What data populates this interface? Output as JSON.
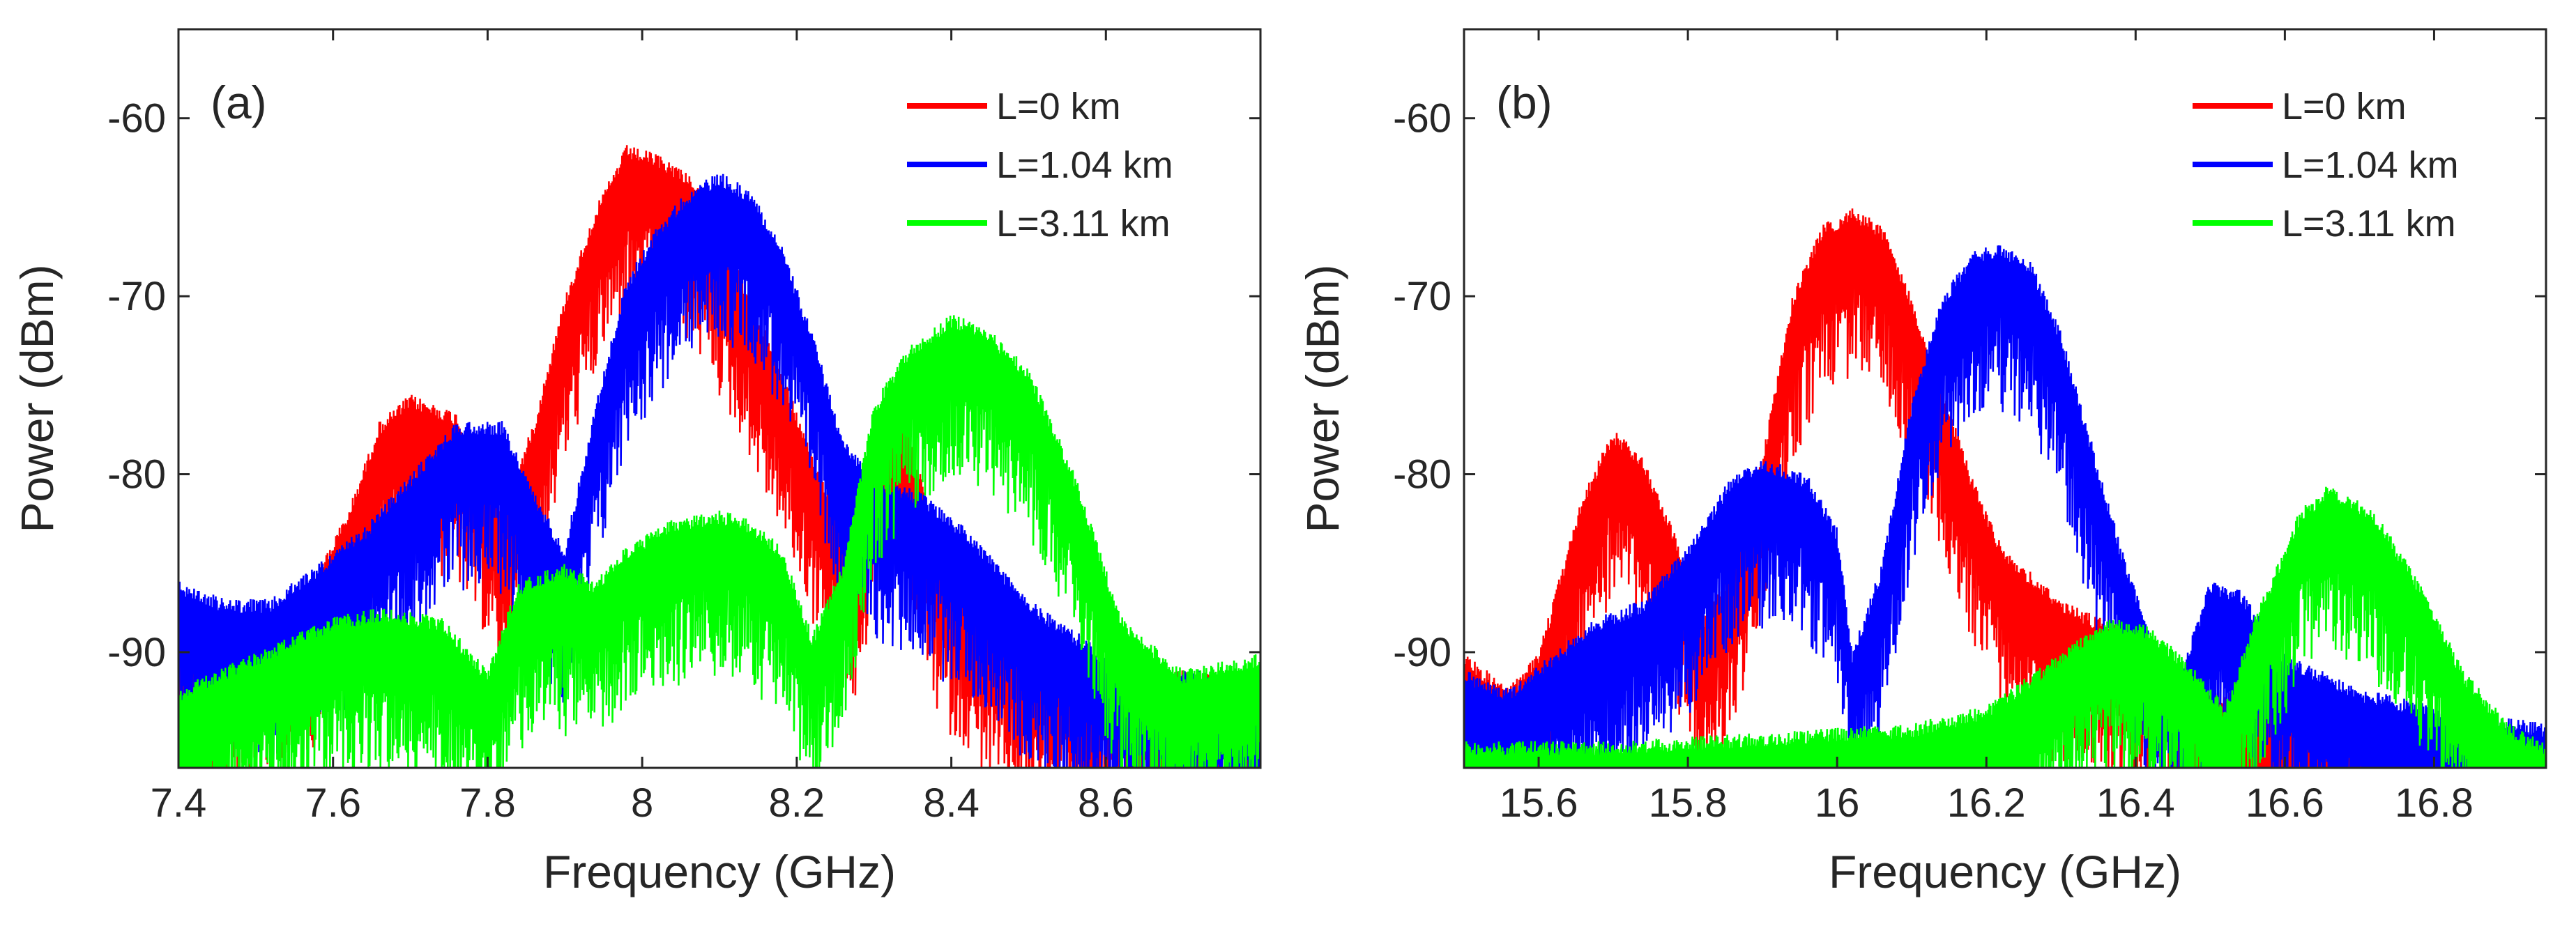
{
  "chart_data": [
    {
      "type": "line",
      "panel_label": "(a)",
      "xlabel": "Frequency (GHz)",
      "ylabel": "Power (dBm)",
      "xlim": [
        7.4,
        8.8
      ],
      "ylim": [
        -96.5,
        -55
      ],
      "xticks": [
        7.4,
        7.6,
        7.8,
        8.0,
        8.2,
        8.4,
        8.6
      ],
      "xtick_labels": [
        "7.4",
        "7.6",
        "7.8",
        "8",
        "8.2",
        "8.4",
        "8.6"
      ],
      "yticks": [
        -90,
        -80,
        -70,
        -60
      ],
      "ytick_labels": [
        "-90",
        "-80",
        "-70",
        "-60"
      ],
      "grid": false,
      "legend_position": "top-right",
      "series": [
        {
          "name": "L=0 km",
          "color": "#ff0000",
          "envelope": [
            [
              7.4,
              -87
            ],
            [
              7.5,
              -88
            ],
            [
              7.56,
              -87
            ],
            [
              7.62,
              -82
            ],
            [
              7.66,
              -77
            ],
            [
              7.7,
              -75.5
            ],
            [
              7.76,
              -76.5
            ],
            [
              7.82,
              -82
            ],
            [
              7.86,
              -77
            ],
            [
              7.9,
              -70
            ],
            [
              7.94,
              -65
            ],
            [
              7.98,
              -61.5
            ],
            [
              8.02,
              -62
            ],
            [
              8.06,
              -63
            ],
            [
              8.1,
              -66
            ],
            [
              8.14,
              -70
            ],
            [
              8.18,
              -74
            ],
            [
              8.22,
              -79
            ],
            [
              8.28,
              -84
            ],
            [
              8.3,
              -77
            ],
            [
              8.34,
              -76
            ],
            [
              8.38,
              -84
            ],
            [
              8.45,
              -88
            ],
            [
              8.55,
              -90
            ],
            [
              8.65,
              -91
            ],
            [
              8.8,
              -91
            ]
          ]
        },
        {
          "name": "L=1.04 km",
          "color": "#0000ff",
          "envelope": [
            [
              7.4,
              -86
            ],
            [
              7.46,
              -87
            ],
            [
              7.52,
              -87
            ],
            [
              7.58,
              -85
            ],
            [
              7.64,
              -83
            ],
            [
              7.7,
              -80
            ],
            [
              7.76,
              -77
            ],
            [
              7.82,
              -77
            ],
            [
              7.86,
              -81
            ],
            [
              7.9,
              -84
            ],
            [
              7.94,
              -76
            ],
            [
              7.98,
              -69
            ],
            [
              8.02,
              -66
            ],
            [
              8.06,
              -64
            ],
            [
              8.1,
              -63
            ],
            [
              8.14,
              -64
            ],
            [
              8.18,
              -67
            ],
            [
              8.22,
              -72
            ],
            [
              8.26,
              -78
            ],
            [
              8.3,
              -80
            ],
            [
              8.36,
              -81
            ],
            [
              8.42,
              -83
            ],
            [
              8.5,
              -87
            ],
            [
              8.6,
              -90
            ],
            [
              8.7,
              -91
            ],
            [
              8.8,
              -91
            ]
          ]
        },
        {
          "name": "L=3.11 km",
          "color": "#00ff00",
          "envelope": [
            [
              7.4,
              -92
            ],
            [
              7.5,
              -90
            ],
            [
              7.6,
              -88
            ],
            [
              7.66,
              -87.5
            ],
            [
              7.74,
              -88
            ],
            [
              7.8,
              -91
            ],
            [
              7.84,
              -86
            ],
            [
              7.9,
              -85
            ],
            [
              7.94,
              -86
            ],
            [
              7.98,
              -84
            ],
            [
              8.04,
              -82.5
            ],
            [
              8.1,
              -82
            ],
            [
              8.14,
              -82.5
            ],
            [
              8.18,
              -84
            ],
            [
              8.22,
              -89
            ],
            [
              8.26,
              -85
            ],
            [
              8.3,
              -76
            ],
            [
              8.34,
              -73
            ],
            [
              8.4,
              -71
            ],
            [
              8.44,
              -71.5
            ],
            [
              8.5,
              -74
            ],
            [
              8.56,
              -80
            ],
            [
              8.62,
              -88
            ],
            [
              8.7,
              -91
            ],
            [
              8.8,
              -90
            ]
          ]
        }
      ]
    },
    {
      "type": "line",
      "panel_label": "(b)",
      "xlabel": "Frequency (GHz)",
      "ylabel": "Power (dBm)",
      "xlim": [
        15.5,
        16.95
      ],
      "ylim": [
        -96.5,
        -55
      ],
      "xticks": [
        15.6,
        15.8,
        16.0,
        16.2,
        16.4,
        16.6,
        16.8
      ],
      "xtick_labels": [
        "15.6",
        "15.8",
        "16",
        "16.2",
        "16.4",
        "16.6",
        "16.8"
      ],
      "yticks": [
        -90,
        -80,
        -70,
        -60
      ],
      "ytick_labels": [
        "-90",
        "-80",
        "-70",
        "-60"
      ],
      "grid": false,
      "legend_position": "top-right",
      "series": [
        {
          "name": "L=0 km",
          "color": "#ff0000",
          "envelope": [
            [
              15.5,
              -90
            ],
            [
              15.56,
              -92
            ],
            [
              15.6,
              -90
            ],
            [
              15.62,
              -87
            ],
            [
              15.66,
              -81
            ],
            [
              15.7,
              -77.5
            ],
            [
              15.74,
              -79
            ],
            [
              15.78,
              -83
            ],
            [
              15.82,
              -88
            ],
            [
              15.86,
              -85
            ],
            [
              15.9,
              -79
            ],
            [
              15.94,
              -70
            ],
            [
              15.98,
              -66
            ],
            [
              16.02,
              -65
            ],
            [
              16.06,
              -66
            ],
            [
              16.1,
              -70
            ],
            [
              16.14,
              -75
            ],
            [
              16.18,
              -80
            ],
            [
              16.22,
              -84
            ],
            [
              16.3,
              -87
            ],
            [
              16.4,
              -89
            ],
            [
              16.5,
              -92
            ],
            [
              16.7,
              -94
            ],
            [
              16.95,
              -95
            ]
          ]
        },
        {
          "name": "L=1.04 km",
          "color": "#0000ff",
          "envelope": [
            [
              15.5,
              -91
            ],
            [
              15.56,
              -92
            ],
            [
              15.62,
              -90
            ],
            [
              15.68,
              -88
            ],
            [
              15.74,
              -87
            ],
            [
              15.8,
              -84
            ],
            [
              15.86,
              -80
            ],
            [
              15.9,
              -79
            ],
            [
              15.96,
              -80
            ],
            [
              16.0,
              -83
            ],
            [
              16.02,
              -90
            ],
            [
              16.06,
              -85
            ],
            [
              16.1,
              -76
            ],
            [
              16.14,
              -70
            ],
            [
              16.18,
              -67.5
            ],
            [
              16.22,
              -67
            ],
            [
              16.26,
              -68
            ],
            [
              16.3,
              -72
            ],
            [
              16.34,
              -78
            ],
            [
              16.38,
              -84
            ],
            [
              16.42,
              -89
            ],
            [
              16.46,
              -91
            ],
            [
              16.5,
              -86
            ],
            [
              16.54,
              -86.5
            ],
            [
              16.6,
              -90
            ],
            [
              16.7,
              -92
            ],
            [
              16.8,
              -93
            ],
            [
              16.95,
              -94
            ]
          ]
        },
        {
          "name": "L=3.11 km",
          "color": "#00ff00",
          "envelope": [
            [
              15.5,
              -95
            ],
            [
              15.7,
              -95
            ],
            [
              15.9,
              -94.5
            ],
            [
              16.1,
              -94
            ],
            [
              16.2,
              -93
            ],
            [
              16.3,
              -90
            ],
            [
              16.36,
              -88
            ],
            [
              16.42,
              -88.5
            ],
            [
              16.48,
              -91
            ],
            [
              16.52,
              -93
            ],
            [
              16.56,
              -88
            ],
            [
              16.62,
              -82
            ],
            [
              16.66,
              -80.5
            ],
            [
              16.72,
              -82
            ],
            [
              16.78,
              -86
            ],
            [
              16.84,
              -91
            ],
            [
              16.9,
              -94
            ],
            [
              16.95,
              -95
            ]
          ]
        }
      ]
    }
  ]
}
